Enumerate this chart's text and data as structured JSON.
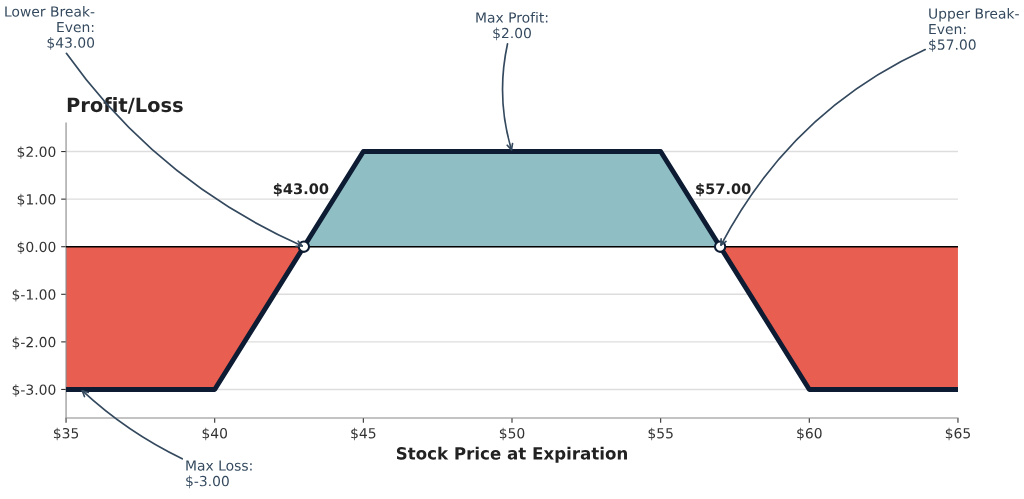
{
  "chart_data": {
    "type": "line",
    "title": "Profit/Loss",
    "xlabel": "Stock Price at Expiration",
    "series": [
      {
        "type": "area",
        "color": "#e85e50",
        "x": [
          35,
          40,
          43,
          50,
          57,
          60,
          65
        ],
        "values": [
          -3,
          -3,
          0,
          null,
          0,
          -3,
          -3
        ]
      },
      {
        "type": "area",
        "color": "#8fbfc4",
        "x": [
          43,
          45,
          55,
          57
        ],
        "values": [
          0,
          2,
          2,
          0
        ]
      },
      {
        "color": "#0d1b33",
        "x": [
          35,
          40,
          43,
          45,
          55,
          57,
          60,
          65
        ],
        "values": [
          -3,
          -3,
          0,
          2,
          2,
          0,
          -3,
          -3
        ]
      },
      {
        "type": "scatter",
        "color": "#ffffff",
        "marker": "circle",
        "x": [
          43,
          57
        ],
        "values": [
          0,
          0
        ]
      }
    ],
    "ref_lines": [
      {
        "axis": "y",
        "value": 0,
        "color": "#000000"
      }
    ],
    "xlim": [
      35,
      65
    ],
    "ylim": [
      -3.6,
      2.6
    ],
    "xticks": [
      {
        "value": 35,
        "label": "$35"
      },
      {
        "value": 40,
        "label": "$40"
      },
      {
        "value": 45,
        "label": "$45"
      },
      {
        "value": 50,
        "label": "$50"
      },
      {
        "value": 55,
        "label": "$55"
      },
      {
        "value": 60,
        "label": "$60"
      },
      {
        "value": 65,
        "label": "$65"
      }
    ],
    "yticks": [
      {
        "value": -3,
        "label": "$-3.00"
      },
      {
        "value": -2,
        "label": "$-2.00"
      },
      {
        "value": -1,
        "label": "$-1.00"
      },
      {
        "value": 0,
        "label": "$0.00"
      },
      {
        "value": 1,
        "label": "$1.00"
      },
      {
        "value": 2,
        "label": "$2.00"
      }
    ],
    "grid": "y",
    "legend": false,
    "annotations": [
      {
        "text": "Lower Break-\nEven:\n$43.00",
        "x": 43,
        "y": 0
      },
      {
        "text": "Max Profit:\n$2.00",
        "x": 50,
        "y": 2
      },
      {
        "text": "Upper Break-\nEven:\n$57.00",
        "x": 57,
        "y": 0
      },
      {
        "text": "Max Loss:\n$-3.00",
        "x": 35.5,
        "y": -3
      },
      "$43.00",
      "$57.00"
    ]
  }
}
